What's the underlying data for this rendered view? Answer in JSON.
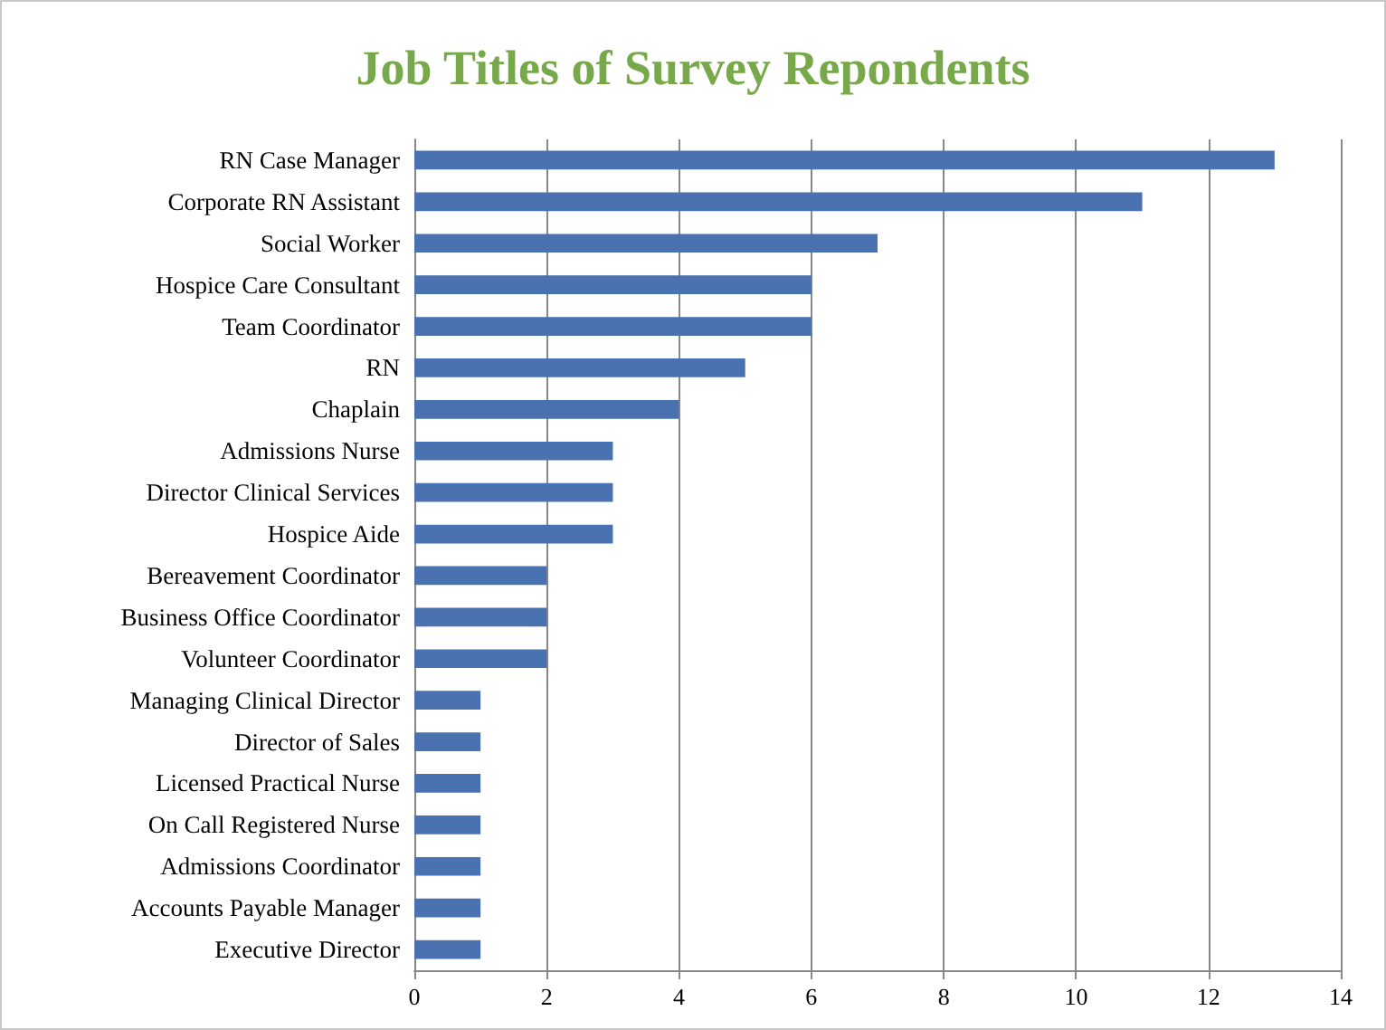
{
  "chart_data": {
    "type": "bar",
    "orientation": "horizontal",
    "title": "Job Titles of Survey Repondents",
    "categories": [
      "RN Case Manager",
      "Corporate RN Assistant",
      "Social Worker",
      "Hospice Care Consultant",
      "Team Coordinator",
      "RN",
      "Chaplain",
      "Admissions Nurse",
      "Director Clinical Services",
      "Hospice Aide",
      "Bereavement Coordinator",
      "Business Office Coordinator",
      "Volunteer Coordinator",
      "Managing Clinical Director",
      "Director of Sales",
      "Licensed Practical Nurse",
      "On Call Registered Nurse",
      "Admissions Coordinator",
      "Accounts Payable Manager",
      "Executive Director"
    ],
    "values": [
      13,
      11,
      7,
      6,
      6,
      5,
      4,
      3,
      3,
      3,
      2,
      2,
      2,
      1,
      1,
      1,
      1,
      1,
      1,
      1
    ],
    "color": "#4a72b0",
    "xlim": [
      0,
      14
    ],
    "xticks": [
      0,
      2,
      4,
      6,
      8,
      10,
      12,
      14
    ],
    "grid": "x"
  }
}
